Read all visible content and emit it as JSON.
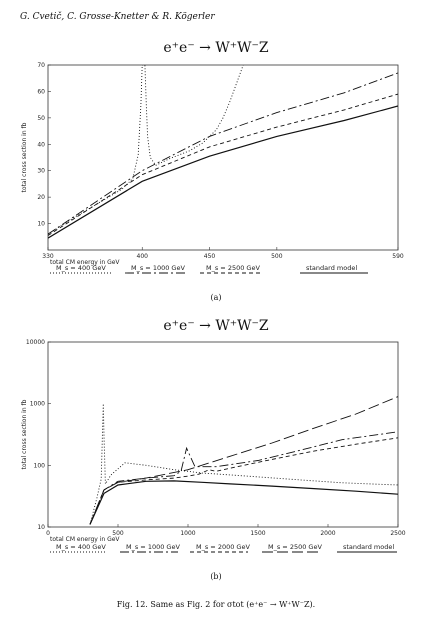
{
  "header": "G. Cvetič, C. Grosse-Knetter & R. Kögerler",
  "caption": "Fig. 12. Same as Fig. 2 for σtot (e⁺e⁻ → W⁺W⁻Z).",
  "chart_data": [
    {
      "type": "line",
      "title": "e⁺e⁻  →  W⁺W⁻Z",
      "sublabel": "(a)",
      "xlabel": "total CM energy in GeV",
      "ylabel": "total cross section in fb",
      "xlim": [
        330,
        590
      ],
      "ylim": [
        0,
        70
      ],
      "xticks": [
        330,
        400,
        450,
        500,
        590
      ],
      "yticks": [
        10,
        20,
        30,
        40,
        50,
        60,
        70
      ],
      "series": [
        {
          "name": "M_s = 400 GeV",
          "style": "dotted",
          "points": [
            [
              330,
              6
            ],
            [
              350,
              12.5
            ],
            [
              370,
              18.5
            ],
            [
              385,
              23
            ],
            [
              393,
              27
            ],
            [
              397,
              36
            ],
            [
              399,
              55
            ],
            [
              400,
              70
            ],
            [
              402,
              70
            ],
            [
              403,
              55
            ],
            [
              404,
              43
            ],
            [
              406,
              35
            ],
            [
              410,
              32
            ],
            [
              420,
              34.5
            ],
            [
              435,
              37.5
            ],
            [
              445,
              40.5
            ],
            [
              450,
              43
            ],
            [
              455,
              45.5
            ],
            [
              460,
              50
            ],
            [
              465,
              56
            ],
            [
              470,
              63
            ],
            [
              475,
              70
            ]
          ]
        },
        {
          "name": "M_s = 1000 GeV",
          "style": "dash-dot",
          "points": [
            [
              330,
              6
            ],
            [
              400,
              30
            ],
            [
              450,
              43
            ],
            [
              500,
              52
            ],
            [
              550,
              59.5
            ],
            [
              590,
              67
            ]
          ]
        },
        {
          "name": "M_s = 2500 GeV",
          "style": "dashed",
          "points": [
            [
              330,
              5.5
            ],
            [
              400,
              28.5
            ],
            [
              450,
              39
            ],
            [
              500,
              46.5
            ],
            [
              550,
              53
            ],
            [
              590,
              59
            ]
          ]
        },
        {
          "name": "standard model",
          "style": "solid",
          "points": [
            [
              330,
              4.5
            ],
            [
              400,
              26
            ],
            [
              450,
              35.5
            ],
            [
              500,
              43
            ],
            [
              550,
              49
            ],
            [
              590,
              54.5
            ]
          ]
        }
      ]
    },
    {
      "type": "line",
      "title": "e⁺e⁻  →  W⁺W⁻Z",
      "sublabel": "(b)",
      "xlabel": "total CM energy in GeV",
      "ylabel": "total cross section in fb",
      "xlim": [
        0,
        2500
      ],
      "ylim": [
        10,
        10000
      ],
      "yscale": "log",
      "xticks": [
        0,
        500,
        1000,
        1500,
        2000,
        2500
      ],
      "yticks": [
        10,
        100,
        1000,
        10000
      ],
      "series": [
        {
          "name": "M_s = 400 GeV",
          "style": "dotted",
          "points": [
            [
              300,
              11
            ],
            [
              350,
              30
            ],
            [
              380,
              60
            ],
            [
              395,
              1000
            ],
            [
              400,
              300
            ],
            [
              410,
              50
            ],
            [
              450,
              70
            ],
            [
              550,
              110
            ],
            [
              700,
              100
            ],
            [
              900,
              85
            ],
            [
              1100,
              75
            ],
            [
              1300,
              70
            ],
            [
              1500,
              65
            ],
            [
              1800,
              58
            ],
            [
              2100,
              52
            ],
            [
              2500,
              48
            ]
          ]
        },
        {
          "name": "M_s = 1000 GeV",
          "style": "dash-dot",
          "points": [
            [
              300,
              11
            ],
            [
              400,
              40
            ],
            [
              500,
              55
            ],
            [
              700,
              62
            ],
            [
              900,
              68
            ],
            [
              950,
              80
            ],
            [
              990,
              190
            ],
            [
              1010,
              150
            ],
            [
              1050,
              95
            ],
            [
              1200,
              95
            ],
            [
              1500,
              120
            ],
            [
              1800,
              175
            ],
            [
              2100,
              260
            ],
            [
              2500,
              350
            ]
          ]
        },
        {
          "name": "M_s = 2000 GeV",
          "style": "dashed",
          "points": [
            [
              300,
              11
            ],
            [
              400,
              40
            ],
            [
              500,
              53
            ],
            [
              700,
              58
            ],
            [
              900,
              62
            ],
            [
              1000,
              67
            ],
            [
              1080,
              72
            ],
            [
              1150,
              85
            ],
            [
              1200,
              80
            ],
            [
              1300,
              90
            ],
            [
              1600,
              125
            ],
            [
              1900,
              170
            ],
            [
              2200,
              220
            ],
            [
              2500,
              280
            ]
          ]
        },
        {
          "name": "M_s = 2500 GeV",
          "style": "long-dash",
          "points": [
            [
              300,
              11
            ],
            [
              400,
              40
            ],
            [
              500,
              53
            ],
            [
              700,
              62
            ],
            [
              1000,
              85
            ],
            [
              1300,
              140
            ],
            [
              1600,
              230
            ],
            [
              1900,
              400
            ],
            [
              2200,
              680
            ],
            [
              2500,
              1300
            ]
          ]
        },
        {
          "name": "standard model",
          "style": "solid",
          "points": [
            [
              300,
              11
            ],
            [
              400,
              35
            ],
            [
              500,
              48
            ],
            [
              700,
              55
            ],
            [
              900,
              56
            ],
            [
              1100,
              53
            ],
            [
              1300,
              50
            ],
            [
              1600,
              46
            ],
            [
              1900,
              42
            ],
            [
              2200,
              38
            ],
            [
              2500,
              34
            ]
          ]
        }
      ]
    }
  ]
}
